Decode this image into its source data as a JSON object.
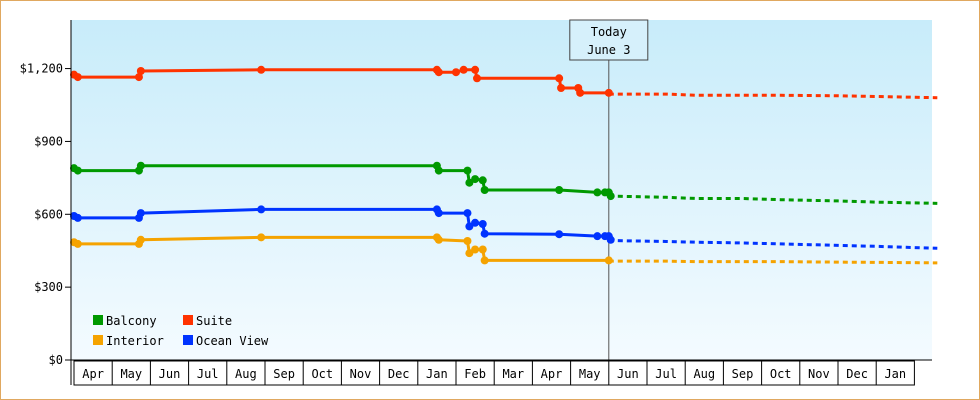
{
  "chart_data": {
    "type": "line",
    "title": "",
    "xlabel": "",
    "ylabel": "",
    "ylim": [
      0,
      1400
    ],
    "y_ticks": [
      {
        "value": 0,
        "label": "$0"
      },
      {
        "value": 300,
        "label": "$300"
      },
      {
        "value": 600,
        "label": "$600"
      },
      {
        "value": 900,
        "label": "$900"
      },
      {
        "value": 1200,
        "label": "$1,200"
      }
    ],
    "x_months": [
      "Apr",
      "May",
      "Jun",
      "Jul",
      "Aug",
      "Sep",
      "Oct",
      "Nov",
      "Dec",
      "Jan",
      "Feb",
      "Mar",
      "Apr",
      "May",
      "Jun",
      "Jul",
      "Aug",
      "Sep",
      "Oct",
      "Nov",
      "Dec",
      "Jan"
    ],
    "today_marker": {
      "line1": "Today",
      "line2": "June 3",
      "x": 14.0
    },
    "grid": false,
    "legend_position": "bottom-left",
    "series": [
      {
        "name": "Balcony",
        "color": "#009900",
        "points": [
          [
            0,
            790
          ],
          [
            0.1,
            780
          ],
          [
            1.7,
            780
          ],
          [
            1.75,
            800
          ],
          [
            9.5,
            800
          ],
          [
            9.55,
            780
          ],
          [
            10.3,
            780
          ],
          [
            10.35,
            730
          ],
          [
            10.5,
            745
          ],
          [
            10.7,
            740
          ],
          [
            10.75,
            700
          ],
          [
            12.7,
            700
          ],
          [
            13.7,
            690
          ],
          [
            13.9,
            690
          ],
          [
            14.0,
            690
          ],
          [
            14.05,
            675
          ]
        ],
        "forecast": [
          [
            14.0,
            675
          ],
          [
            15.5,
            670
          ],
          [
            16.3,
            665
          ],
          [
            17.5,
            665
          ],
          [
            18.5,
            660
          ],
          [
            20.0,
            655
          ],
          [
            21.0,
            650
          ],
          [
            22.6,
            645
          ]
        ]
      },
      {
        "name": "Suite",
        "color": "#ff3300",
        "points": [
          [
            0,
            1175
          ],
          [
            0.1,
            1165
          ],
          [
            1.7,
            1165
          ],
          [
            1.75,
            1190
          ],
          [
            4.9,
            1195
          ],
          [
            9.5,
            1195
          ],
          [
            9.55,
            1185
          ],
          [
            10.0,
            1185
          ],
          [
            10.2,
            1195
          ],
          [
            10.5,
            1195
          ],
          [
            10.55,
            1160
          ],
          [
            12.7,
            1160
          ],
          [
            12.75,
            1120
          ],
          [
            13.2,
            1120
          ],
          [
            13.25,
            1100
          ],
          [
            14.0,
            1100
          ]
        ],
        "forecast": [
          [
            14.0,
            1095
          ],
          [
            15.5,
            1095
          ],
          [
            16.3,
            1090
          ],
          [
            17.5,
            1090
          ],
          [
            18.5,
            1090
          ],
          [
            20.0,
            1088
          ],
          [
            21.0,
            1085
          ],
          [
            22.6,
            1080
          ]
        ]
      },
      {
        "name": "Interior",
        "color": "#f5a300",
        "points": [
          [
            0,
            485
          ],
          [
            0.1,
            478
          ],
          [
            1.7,
            478
          ],
          [
            1.75,
            495
          ],
          [
            4.9,
            505
          ],
          [
            9.5,
            505
          ],
          [
            9.55,
            495
          ],
          [
            10.3,
            490
          ],
          [
            10.35,
            440
          ],
          [
            10.5,
            455
          ],
          [
            10.7,
            455
          ],
          [
            10.75,
            410
          ],
          [
            14.0,
            410
          ]
        ],
        "forecast": [
          [
            14.0,
            407
          ],
          [
            15.5,
            407
          ],
          [
            16.3,
            405
          ],
          [
            17.5,
            405
          ],
          [
            18.5,
            405
          ],
          [
            20.0,
            403
          ],
          [
            21.0,
            402
          ],
          [
            22.6,
            400
          ]
        ]
      },
      {
        "name": "Ocean View",
        "color": "#0033ff",
        "points": [
          [
            0,
            593
          ],
          [
            0.1,
            585
          ],
          [
            1.7,
            585
          ],
          [
            1.75,
            605
          ],
          [
            4.9,
            620
          ],
          [
            9.5,
            620
          ],
          [
            9.55,
            605
          ],
          [
            10.3,
            605
          ],
          [
            10.35,
            550
          ],
          [
            10.5,
            565
          ],
          [
            10.7,
            560
          ],
          [
            10.75,
            520
          ],
          [
            12.7,
            518
          ],
          [
            13.7,
            510
          ],
          [
            13.9,
            510
          ],
          [
            14.0,
            510
          ],
          [
            14.05,
            495
          ]
        ],
        "forecast": [
          [
            14.0,
            492
          ],
          [
            15.5,
            488
          ],
          [
            16.3,
            485
          ],
          [
            17.5,
            482
          ],
          [
            18.5,
            478
          ],
          [
            20.0,
            472
          ],
          [
            21.0,
            468
          ],
          [
            22.6,
            460
          ]
        ]
      }
    ],
    "legend": [
      {
        "name": "Balcony",
        "color": "#009900"
      },
      {
        "name": "Suite",
        "color": "#ff3300"
      },
      {
        "name": "Interior",
        "color": "#f5a300"
      },
      {
        "name": "Ocean View",
        "color": "#0033ff"
      }
    ]
  }
}
